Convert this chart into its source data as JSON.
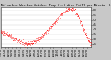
{
  "title": "Milwaukee Weather Outdoor Temp (vs) Wind Chill per Minute (Last 24 Hours)",
  "background_color": "#c8c8c8",
  "plot_bg_color": "#ffffff",
  "line_color": "#ff0000",
  "grid_color": "#888888",
  "y_label_color": "#000000",
  "ylim": [
    22,
    63
  ],
  "yticks": [
    25,
    30,
    35,
    40,
    45,
    50,
    55,
    60
  ],
  "x_data": [
    0,
    60,
    120,
    180,
    240,
    280,
    320,
    360,
    400,
    440,
    480,
    520,
    560,
    600,
    640,
    680,
    720,
    760,
    800,
    840,
    880,
    920,
    960,
    1000,
    1040,
    1080,
    1120,
    1160,
    1200,
    1240,
    1280,
    1320,
    1360,
    1400,
    1439
  ],
  "y_data": [
    37,
    36,
    34,
    32,
    30,
    28,
    27,
    26,
    25,
    25,
    26,
    27,
    28,
    30,
    32,
    34,
    37,
    40,
    43,
    46,
    49,
    52,
    55,
    57,
    59,
    60,
    61,
    60,
    57,
    53,
    47,
    40,
    34,
    29,
    25
  ],
  "vline_positions": [
    360,
    720,
    1080
  ],
  "marker_size": 1.2,
  "title_fontsize": 3.2,
  "tick_fontsize": 2.8
}
